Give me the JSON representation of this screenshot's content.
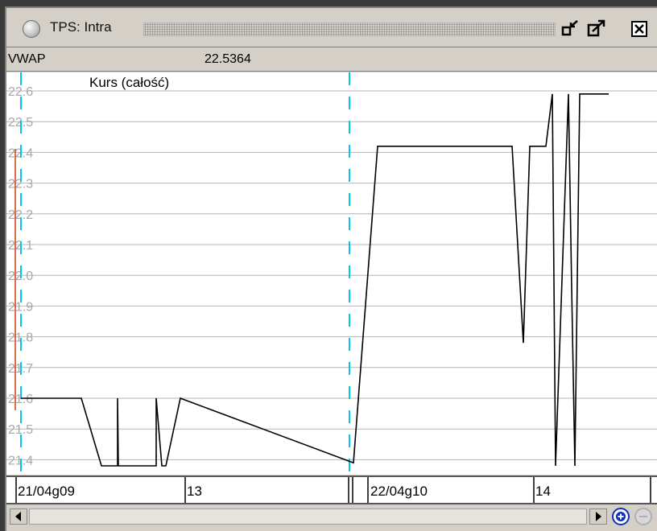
{
  "window": {
    "title": "TPS: Intra"
  },
  "header": {
    "label": "VWAP",
    "value": "22.5364"
  },
  "icons": {
    "window_icon": "status-circle-icon",
    "minimize": "restore-down-icon",
    "maximize": "maximize-icon",
    "close": "close-icon",
    "scroll_left": "scroll-left-arrow-icon",
    "scroll_right": "scroll-right-arrow-icon",
    "zoom_in": "zoom-in-icon",
    "zoom_out": "zoom-out-icon"
  },
  "colors": {
    "line": "#000000",
    "grid": "#b4b4b4",
    "session_divider": "#00c8e8",
    "start_marker": "#d04010",
    "tick_label": "#a8a8a8"
  },
  "chart_data": {
    "type": "line",
    "title": "Kurs (całość)",
    "xlabel": "",
    "ylabel": "",
    "ylim": [
      21.35,
      22.65
    ],
    "y_ticks": [
      "22.6",
      "22.5",
      "22.4",
      "22.3",
      "22.2",
      "22.1",
      "22.0",
      "21.9",
      "21.8",
      "21.7",
      "21.6",
      "21.5",
      "21.4"
    ],
    "x_labels": [
      "21/04g09",
      "13",
      "22/04g10",
      "14"
    ],
    "series": [
      {
        "values": [
          [
            0,
            21.6
          ],
          [
            75,
            21.6
          ],
          [
            100,
            21.38
          ],
          [
            120,
            21.38
          ],
          [
            120,
            21.6
          ],
          [
            121,
            21.38
          ],
          [
            168,
            21.38
          ],
          [
            168,
            21.6
          ],
          [
            175,
            21.38
          ],
          [
            180,
            21.38
          ],
          [
            198,
            21.6
          ],
          [
            413,
            21.39
          ],
          [
            443,
            22.42
          ],
          [
            610,
            22.42
          ],
          [
            624,
            21.78
          ],
          [
            632,
            22.42
          ],
          [
            652,
            22.42
          ],
          [
            660,
            22.59
          ],
          [
            664,
            21.38
          ],
          [
            680,
            22.59
          ],
          [
            684,
            21.96
          ],
          [
            688,
            21.38
          ],
          [
            694,
            22.59
          ],
          [
            730,
            22.59
          ]
        ]
      }
    ]
  }
}
